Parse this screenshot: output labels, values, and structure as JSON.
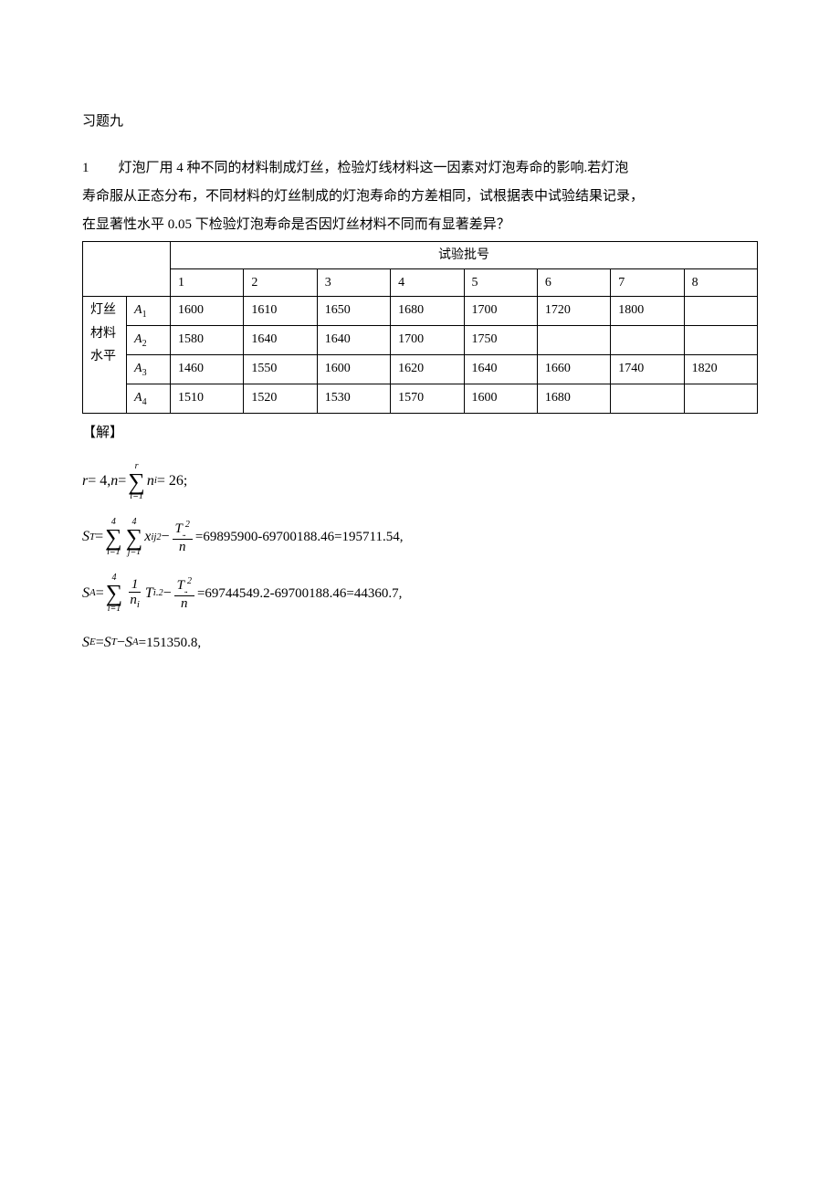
{
  "section_title": "习题九",
  "problem": {
    "number": "1",
    "text_line1": "灯泡厂用 4 种不同的材料制成灯丝，检验灯线材料这一因素对灯泡寿命的影响.若灯泡",
    "text_line2": "寿命服从正态分布，不同材料的灯丝制成的灯泡寿命的方差相同，试根据表中试验结果记录，",
    "text_line3": "在显著性水平 0.05 下检验灯泡寿命是否因灯丝材料不同而有显著差异？"
  },
  "table": {
    "batch_header": "试验批号",
    "batch_numbers": [
      "1",
      "2",
      "3",
      "4",
      "5",
      "6",
      "7",
      "8"
    ],
    "row_header_lines": [
      "灯丝",
      "材料",
      "水平"
    ],
    "levels": [
      "A",
      "A",
      "A",
      "A"
    ],
    "level_subs": [
      "1",
      "2",
      "3",
      "4"
    ],
    "rows": [
      [
        "1600",
        "1610",
        "1650",
        "1680",
        "1700",
        "1720",
        "1800",
        ""
      ],
      [
        "1580",
        "1640",
        "1640",
        "1700",
        "1750",
        "",
        "",
        ""
      ],
      [
        "1460",
        "1550",
        "1600",
        "1620",
        "1640",
        "1660",
        "1740",
        "1820"
      ],
      [
        "1510",
        "1520",
        "1530",
        "1570",
        "1600",
        "1680",
        "",
        ""
      ]
    ]
  },
  "solution_label": "【解】",
  "math": {
    "line1_prefix": "r",
    "line1_eq1": " = 4, ",
    "line1_n": "n",
    "line1_eq2": " = ",
    "line1_sigma_top": "r",
    "line1_sigma_bot": "i=1",
    "line1_ni": "n",
    "line1_ni_sub": "i",
    "line1_result": " = 26;",
    "line2_S": "S",
    "line2_T_sub": "T",
    "line2_eq": " = ",
    "line2_sig1_top": "4",
    "line2_sig1_bot": "i=1",
    "line2_sig2_top": "4",
    "line2_sig2_bot": "j=1",
    "line2_x": "x",
    "line2_x_sub": "ij",
    "line2_x_sup": "2",
    "line2_minus": " − ",
    "line2_frac_top_T": "T",
    "line2_frac_top_sup": "2",
    "line2_frac_bot": "n",
    "line2_result": " =69895900-69700188.46=195711.54,",
    "line3_S": "S",
    "line3_A_sub": "A",
    "line3_eq": " = ",
    "line3_sig_top": "4",
    "line3_sig_bot": "i=1",
    "line3_frac1_top": "1",
    "line3_frac1_bot_n": "n",
    "line3_frac1_bot_sub": "i",
    "line3_T": "T",
    "line3_T_sub": "i.",
    "line3_T_sup": "2",
    "line3_minus": " − ",
    "line3_frac2_top_T": "T",
    "line3_frac2_top_dots": "..",
    "line3_frac2_top_sup": "2",
    "line3_frac2_bot": "n",
    "line3_result": " =69744549.2-69700188.46=44360.7,",
    "line4_S": "S",
    "line4_E_sub": "E",
    "line4_eq": " = ",
    "line4_ST": "S",
    "line4_ST_sub": "T",
    "line4_minus": " − ",
    "line4_SA": "S",
    "line4_SA_sub": "A",
    "line4_result": " =151350.8,"
  }
}
